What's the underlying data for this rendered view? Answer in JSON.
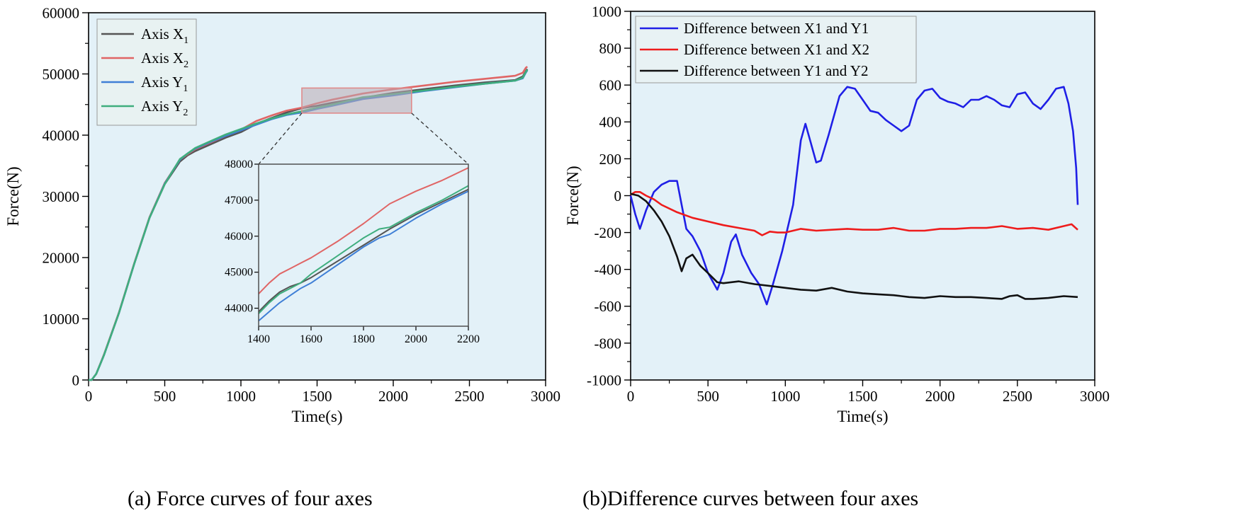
{
  "captions": {
    "a": "(a) Force curves of four axes",
    "b": "(b)Difference curves between four axes"
  },
  "colors": {
    "plot_bg": "#e3f1f8",
    "x1": "#555555",
    "x2": "#e06565",
    "y1": "#3f7fd6",
    "y2": "#3fae7e",
    "diff_x1y1": "#1f1fe6",
    "diff_x1x2": "#ee1c1c",
    "diff_y1y2": "#111111",
    "zoom_box": "#e08a8a"
  },
  "chart_data": [
    {
      "id": "a",
      "type": "line",
      "xlabel": "Time(s)",
      "ylabel": "Force(N)",
      "xlim": [
        0,
        3000
      ],
      "ylim": [
        0,
        60000
      ],
      "xticks": [
        0,
        500,
        1000,
        1500,
        2000,
        2500,
        3000
      ],
      "yticks": [
        0,
        10000,
        20000,
        30000,
        40000,
        50000,
        60000
      ],
      "legend": {
        "position": "top-left",
        "entries": [
          {
            "label": "Axis X",
            "sub": "1",
            "series": "x1"
          },
          {
            "label": "Axis X",
            "sub": "2",
            "series": "x2"
          },
          {
            "label": "Axis Y",
            "sub": "1",
            "series": "y1"
          },
          {
            "label": "Axis Y",
            "sub": "2",
            "series": "y2"
          }
        ]
      },
      "series": [
        {
          "key": "x1",
          "name": "Axis X1",
          "x": [
            0,
            20,
            50,
            100,
            200,
            300,
            400,
            500,
            600,
            650,
            700,
            800,
            900,
            1000,
            1100,
            1200,
            1300,
            1400,
            1500,
            1600,
            1800,
            2000,
            2200,
            2400,
            2600,
            2800,
            2850,
            2870,
            2880
          ],
          "y": [
            0,
            0,
            1000,
            4000,
            11000,
            19000,
            26500,
            32000,
            35700,
            36700,
            37400,
            38500,
            39600,
            40500,
            41800,
            42800,
            43700,
            44400,
            44800,
            45300,
            46100,
            46900,
            47500,
            48100,
            48600,
            49000,
            49600,
            50400,
            50800
          ]
        },
        {
          "key": "x2",
          "name": "Axis X2",
          "x": [
            0,
            20,
            50,
            100,
            200,
            300,
            400,
            500,
            600,
            650,
            700,
            800,
            900,
            1000,
            1100,
            1200,
            1300,
            1400,
            1500,
            1600,
            1800,
            2000,
            2200,
            2400,
            2600,
            2800,
            2850,
            2870,
            2880
          ],
          "y": [
            0,
            0,
            1000,
            4100,
            11100,
            19100,
            26600,
            32200,
            36000,
            36900,
            37700,
            38800,
            39900,
            40900,
            42300,
            43200,
            44000,
            44500,
            45200,
            45800,
            46800,
            47500,
            48100,
            48700,
            49200,
            49700,
            50200,
            51000,
            51200
          ]
        },
        {
          "key": "y1",
          "name": "Axis Y1",
          "x": [
            0,
            20,
            50,
            100,
            200,
            300,
            400,
            500,
            600,
            650,
            700,
            800,
            900,
            1000,
            1100,
            1200,
            1300,
            1400,
            1500,
            1600,
            1800,
            2000,
            2200,
            2400,
            2600,
            2800,
            2850,
            2870,
            2880
          ],
          "y": [
            0,
            0,
            1000,
            4000,
            11000,
            19000,
            26500,
            32100,
            36000,
            37000,
            37800,
            38900,
            39900,
            40800,
            41700,
            42600,
            43300,
            43700,
            44300,
            44800,
            45900,
            46500,
            47200,
            47800,
            48400,
            48900,
            49300,
            50200,
            50600
          ]
        },
        {
          "key": "y2",
          "name": "Axis Y2",
          "x": [
            0,
            20,
            50,
            100,
            200,
            300,
            400,
            500,
            600,
            650,
            700,
            800,
            900,
            1000,
            1100,
            1200,
            1300,
            1400,
            1500,
            1600,
            1800,
            2000,
            2200,
            2400,
            2600,
            2800,
            2850,
            2870,
            2880
          ],
          "y": [
            0,
            0,
            1000,
            4000,
            11000,
            19000,
            26500,
            32000,
            36100,
            37000,
            37900,
            39000,
            40100,
            41000,
            41900,
            42700,
            43400,
            43900,
            44500,
            45000,
            46200,
            46700,
            47300,
            47900,
            48400,
            48900,
            49400,
            50300,
            50700
          ]
        }
      ],
      "zoom_region": {
        "x": [
          1400,
          2120
        ],
        "y": [
          43600,
          47700
        ]
      },
      "inset": {
        "xlim": [
          1400,
          2200
        ],
        "ylim": [
          43500,
          48000
        ],
        "xticks": [
          1400,
          1600,
          1800,
          2000,
          2200
        ],
        "yticks": [
          44000,
          45000,
          46000,
          47000,
          48000
        ],
        "series": [
          {
            "key": "x1",
            "x": [
              1400,
              1440,
              1480,
              1520,
              1560,
              1600,
              1700,
              1800,
              1900,
              2000,
              2100,
              2200
            ],
            "y": [
              43900,
              44200,
              44450,
              44600,
              44700,
              44850,
              45300,
              45750,
              46200,
              46600,
              46950,
              47300
            ]
          },
          {
            "key": "x2",
            "x": [
              1400,
              1440,
              1480,
              1520,
              1560,
              1600,
              1700,
              1800,
              1900,
              2000,
              2100,
              2200
            ],
            "y": [
              44400,
              44700,
              44950,
              45100,
              45250,
              45400,
              45850,
              46350,
              46900,
              47250,
              47550,
              47900
            ]
          },
          {
            "key": "y1",
            "x": [
              1400,
              1440,
              1480,
              1520,
              1560,
              1600,
              1700,
              1800,
              1860,
              1900,
              2000,
              2100,
              2200
            ],
            "y": [
              43650,
              43900,
              44150,
              44350,
              44550,
              44700,
              45200,
              45700,
              45950,
              46050,
              46500,
              46900,
              47250
            ]
          },
          {
            "key": "y2",
            "x": [
              1400,
              1440,
              1480,
              1520,
              1560,
              1600,
              1700,
              1800,
              1860,
              1900,
              2000,
              2100,
              2200
            ],
            "y": [
              43850,
              44150,
              44400,
              44550,
              44700,
              44950,
              45450,
              45950,
              46200,
              46250,
              46650,
              47000,
              47400
            ]
          }
        ]
      }
    },
    {
      "id": "b",
      "type": "line",
      "xlabel": "Time(s)",
      "ylabel": "Force(N)",
      "xlim": [
        0,
        3000
      ],
      "ylim": [
        -1000,
        1000
      ],
      "xticks": [
        0,
        500,
        1000,
        1500,
        2000,
        2500,
        3000
      ],
      "yticks": [
        -1000,
        -800,
        -600,
        -400,
        -200,
        0,
        200,
        400,
        600,
        800,
        1000
      ],
      "legend": {
        "position": "top-left",
        "entries": [
          {
            "label": "Difference between X1 and Y1",
            "series": "diff_x1y1"
          },
          {
            "label": "Difference between X1 and X2",
            "series": "diff_x1x2"
          },
          {
            "label": "Difference between Y1 and Y2",
            "series": "diff_y1y2"
          }
        ]
      },
      "series": [
        {
          "key": "diff_x1y1",
          "name": "Difference between X1 and Y1",
          "x": [
            0,
            30,
            60,
            100,
            150,
            200,
            250,
            300,
            330,
            360,
            400,
            450,
            500,
            560,
            600,
            650,
            680,
            720,
            780,
            830,
            880,
            920,
            980,
            1050,
            1100,
            1130,
            1160,
            1200,
            1230,
            1280,
            1350,
            1400,
            1450,
            1500,
            1550,
            1600,
            1650,
            1700,
            1750,
            1800,
            1850,
            1900,
            1950,
            2000,
            2050,
            2100,
            2150,
            2200,
            2250,
            2300,
            2350,
            2400,
            2450,
            2500,
            2550,
            2600,
            2650,
            2700,
            2750,
            2800,
            2830,
            2860,
            2880,
            2890
          ],
          "y": [
            0,
            -100,
            -180,
            -80,
            20,
            60,
            80,
            80,
            -50,
            -180,
            -220,
            -300,
            -420,
            -510,
            -420,
            -250,
            -210,
            -320,
            -420,
            -480,
            -590,
            -480,
            -300,
            -50,
            300,
            390,
            300,
            180,
            190,
            330,
            540,
            590,
            580,
            520,
            460,
            450,
            410,
            380,
            350,
            380,
            520,
            570,
            580,
            530,
            510,
            500,
            480,
            520,
            520,
            540,
            520,
            490,
            480,
            550,
            560,
            500,
            470,
            520,
            580,
            590,
            500,
            350,
            150,
            -50
          ]
        },
        {
          "key": "diff_x1x2",
          "name": "Difference between X1 and X2",
          "x": [
            0,
            30,
            60,
            100,
            150,
            200,
            300,
            400,
            500,
            600,
            700,
            800,
            850,
            900,
            950,
            1000,
            1100,
            1200,
            1300,
            1400,
            1500,
            1600,
            1700,
            1800,
            1900,
            2000,
            2100,
            2200,
            2300,
            2400,
            2500,
            2600,
            2700,
            2800,
            2850,
            2890
          ],
          "y": [
            5,
            20,
            20,
            0,
            -20,
            -50,
            -90,
            -120,
            -140,
            -160,
            -175,
            -190,
            -215,
            -195,
            -200,
            -200,
            -180,
            -190,
            -185,
            -180,
            -185,
            -185,
            -175,
            -190,
            -190,
            -180,
            -180,
            -175,
            -175,
            -165,
            -180,
            -175,
            -185,
            -165,
            -155,
            -185
          ]
        },
        {
          "key": "diff_y1y2",
          "name": "Difference between Y1 and Y2",
          "x": [
            0,
            50,
            100,
            150,
            200,
            250,
            300,
            330,
            360,
            400,
            450,
            500,
            560,
            600,
            700,
            800,
            900,
            1000,
            1100,
            1200,
            1300,
            1400,
            1500,
            1600,
            1700,
            1800,
            1900,
            2000,
            2100,
            2200,
            2300,
            2400,
            2450,
            2500,
            2550,
            2600,
            2700,
            2800,
            2890
          ],
          "y": [
            10,
            0,
            -30,
            -80,
            -140,
            -220,
            -330,
            -410,
            -340,
            -320,
            -380,
            -420,
            -470,
            -475,
            -465,
            -480,
            -490,
            -500,
            -510,
            -515,
            -500,
            -520,
            -530,
            -535,
            -540,
            -550,
            -555,
            -545,
            -550,
            -550,
            -555,
            -560,
            -545,
            -540,
            -560,
            -560,
            -555,
            -545,
            -550
          ]
        }
      ]
    }
  ]
}
